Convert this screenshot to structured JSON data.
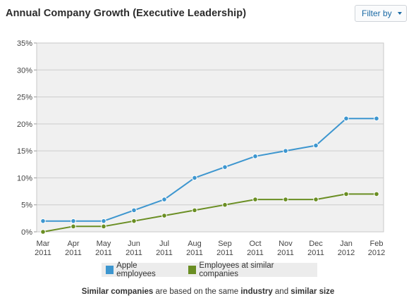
{
  "header": {
    "title": "Annual Company Growth (Executive Leadership)",
    "filter_label": "Filter by"
  },
  "chart_data": {
    "type": "line",
    "x": [
      "Mar 2011",
      "Apr 2011",
      "May 2011",
      "Jun 2011",
      "Jul 2011",
      "Aug 2011",
      "Sep 2011",
      "Oct 2011",
      "Nov 2011",
      "Dec 2011",
      "Jan 2012",
      "Feb 2012"
    ],
    "x_ticks": [
      [
        "Mar",
        "2011"
      ],
      [
        "Apr",
        "2011"
      ],
      [
        "May",
        "2011"
      ],
      [
        "Jun",
        "2011"
      ],
      [
        "Jul",
        "2011"
      ],
      [
        "Aug",
        "2011"
      ],
      [
        "Sep",
        "2011"
      ],
      [
        "Oct",
        "2011"
      ],
      [
        "Nov",
        "2011"
      ],
      [
        "Dec",
        "2011"
      ],
      [
        "Jan",
        "2012"
      ],
      [
        "Feb",
        "2012"
      ]
    ],
    "y_ticks": [
      "0%",
      "5%",
      "10%",
      "15%",
      "20%",
      "25%",
      "30%",
      "35%"
    ],
    "ylim": [
      0,
      35
    ],
    "grid": true,
    "legend_position": "bottom",
    "series": [
      {
        "name": "Apple employees",
        "color": "#3d96cf",
        "values": [
          2,
          2,
          2,
          4,
          6,
          10,
          12,
          14,
          15,
          16,
          21,
          21
        ]
      },
      {
        "name": "Employees at similar companies",
        "color": "#6a8e23",
        "values": [
          0,
          1,
          1,
          2,
          3,
          4,
          5,
          6,
          6,
          6,
          7,
          7
        ]
      }
    ]
  },
  "caption": {
    "part1": "Similar companies",
    "part2": " are based on the same ",
    "part3": "industry",
    "part4": " and ",
    "part5": "similar size"
  }
}
